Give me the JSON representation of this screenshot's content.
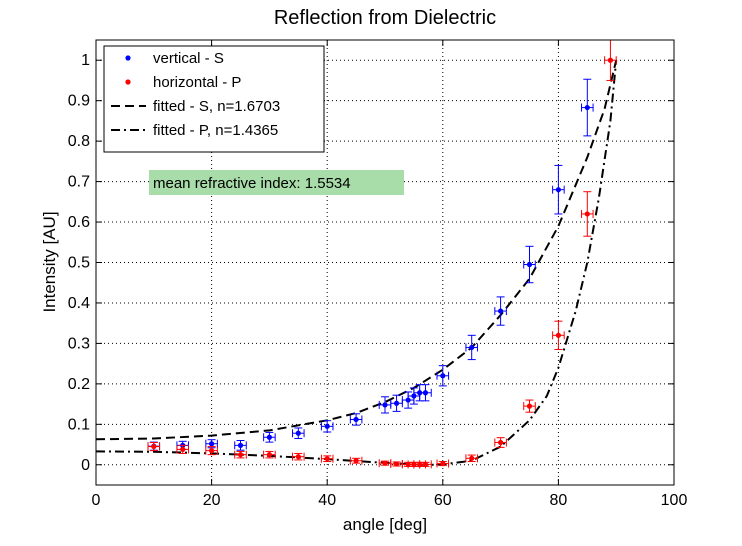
{
  "chart_data": {
    "type": "scatter",
    "title": "Reflection from Dielectric",
    "xlabel": "angle [deg]",
    "ylabel": "Intensity [AU]",
    "xlim": [
      0,
      100
    ],
    "ylim": [
      -0.05,
      1.05
    ],
    "x_ticks": [
      0,
      20,
      40,
      60,
      80,
      100
    ],
    "y_ticks": [
      0,
      0.1,
      0.2,
      0.3,
      0.4,
      0.5,
      0.6,
      0.7,
      0.8,
      0.9,
      1
    ],
    "grid": true,
    "legend_position": "top-left",
    "annotation": "mean refractive index: 1.5534",
    "annotation_color": "#a8dca8",
    "series": [
      {
        "name": "vertical - S",
        "kind": "points",
        "color": "#0000ff",
        "points": [
          {
            "x": 10,
            "y": 0.046,
            "err_y": 0.01,
            "err_x": 1
          },
          {
            "x": 15,
            "y": 0.048,
            "err_y": 0.01,
            "err_x": 1
          },
          {
            "x": 20,
            "y": 0.052,
            "err_y": 0.01,
            "err_x": 1
          },
          {
            "x": 25,
            "y": 0.048,
            "err_y": 0.012,
            "err_x": 1
          },
          {
            "x": 30,
            "y": 0.068,
            "err_y": 0.012,
            "err_x": 1
          },
          {
            "x": 35,
            "y": 0.078,
            "err_y": 0.013,
            "err_x": 1
          },
          {
            "x": 40,
            "y": 0.095,
            "err_y": 0.014,
            "err_x": 1
          },
          {
            "x": 45,
            "y": 0.112,
            "err_y": 0.014,
            "err_x": 1
          },
          {
            "x": 50,
            "y": 0.148,
            "err_y": 0.02,
            "err_x": 1
          },
          {
            "x": 52,
            "y": 0.152,
            "err_y": 0.02,
            "err_x": 1
          },
          {
            "x": 54,
            "y": 0.16,
            "err_y": 0.02,
            "err_x": 1
          },
          {
            "x": 55,
            "y": 0.17,
            "err_y": 0.02,
            "err_x": 1
          },
          {
            "x": 56,
            "y": 0.178,
            "err_y": 0.02,
            "err_x": 1
          },
          {
            "x": 57,
            "y": 0.178,
            "err_y": 0.02,
            "err_x": 1
          },
          {
            "x": 60,
            "y": 0.22,
            "err_y": 0.025,
            "err_x": 1
          },
          {
            "x": 65,
            "y": 0.29,
            "err_y": 0.03,
            "err_x": 1
          },
          {
            "x": 70,
            "y": 0.38,
            "err_y": 0.035,
            "err_x": 1
          },
          {
            "x": 75,
            "y": 0.495,
            "err_y": 0.045,
            "err_x": 1
          },
          {
            "x": 80,
            "y": 0.68,
            "err_y": 0.06,
            "err_x": 1
          },
          {
            "x": 85,
            "y": 0.883,
            "err_y": 0.07,
            "err_x": 1
          }
        ]
      },
      {
        "name": "horizontal - P",
        "kind": "points",
        "color": "#ff0000",
        "points": [
          {
            "x": 10,
            "y": 0.045,
            "err_y": 0.01,
            "err_x": 1
          },
          {
            "x": 15,
            "y": 0.038,
            "err_y": 0.01,
            "err_x": 1
          },
          {
            "x": 20,
            "y": 0.035,
            "err_y": 0.01,
            "err_x": 1
          },
          {
            "x": 25,
            "y": 0.025,
            "err_y": 0.008,
            "err_x": 1
          },
          {
            "x": 30,
            "y": 0.025,
            "err_y": 0.008,
            "err_x": 1
          },
          {
            "x": 35,
            "y": 0.02,
            "err_y": 0.008,
            "err_x": 1
          },
          {
            "x": 40,
            "y": 0.015,
            "err_y": 0.007,
            "err_x": 1
          },
          {
            "x": 45,
            "y": 0.01,
            "err_y": 0.006,
            "err_x": 1
          },
          {
            "x": 50,
            "y": 0.004,
            "err_y": 0.005,
            "err_x": 1
          },
          {
            "x": 52,
            "y": 0.002,
            "err_y": 0.005,
            "err_x": 1
          },
          {
            "x": 54,
            "y": 0.001,
            "err_y": 0.005,
            "err_x": 1
          },
          {
            "x": 55,
            "y": 0.001,
            "err_y": 0.005,
            "err_x": 1
          },
          {
            "x": 56,
            "y": 0.001,
            "err_y": 0.005,
            "err_x": 1
          },
          {
            "x": 57,
            "y": 0.001,
            "err_y": 0.005,
            "err_x": 1
          },
          {
            "x": 60,
            "y": 0.003,
            "err_y": 0.005,
            "err_x": 1
          },
          {
            "x": 65,
            "y": 0.016,
            "err_y": 0.008,
            "err_x": 1
          },
          {
            "x": 70,
            "y": 0.055,
            "err_y": 0.012,
            "err_x": 1
          },
          {
            "x": 75,
            "y": 0.145,
            "err_y": 0.015,
            "err_x": 1
          },
          {
            "x": 80,
            "y": 0.32,
            "err_y": 0.035,
            "err_x": 1
          },
          {
            "x": 85,
            "y": 0.62,
            "err_y": 0.055,
            "err_x": 1
          },
          {
            "x": 89,
            "y": 1.0,
            "err_y": 0.05,
            "err_x": 1
          }
        ]
      },
      {
        "name": "fitted - S, n=1.6703",
        "kind": "curve",
        "color": "#000000",
        "dash": "dashed",
        "points": [
          {
            "x": 0,
            "y": 0.063
          },
          {
            "x": 10,
            "y": 0.065
          },
          {
            "x": 20,
            "y": 0.072
          },
          {
            "x": 30,
            "y": 0.085
          },
          {
            "x": 40,
            "y": 0.11
          },
          {
            "x": 45,
            "y": 0.128
          },
          {
            "x": 50,
            "y": 0.155
          },
          {
            "x": 55,
            "y": 0.19
          },
          {
            "x": 60,
            "y": 0.235
          },
          {
            "x": 65,
            "y": 0.29
          },
          {
            "x": 70,
            "y": 0.37
          },
          {
            "x": 75,
            "y": 0.46
          },
          {
            "x": 80,
            "y": 0.59
          },
          {
            "x": 85,
            "y": 0.76
          },
          {
            "x": 88,
            "y": 0.88
          },
          {
            "x": 90,
            "y": 1.0
          }
        ]
      },
      {
        "name": "fitted - P, n=1.4365",
        "kind": "curve",
        "color": "#000000",
        "dash": "dashdot",
        "points": [
          {
            "x": 0,
            "y": 0.033
          },
          {
            "x": 10,
            "y": 0.032
          },
          {
            "x": 20,
            "y": 0.028
          },
          {
            "x": 30,
            "y": 0.022
          },
          {
            "x": 40,
            "y": 0.014
          },
          {
            "x": 45,
            "y": 0.009
          },
          {
            "x": 50,
            "y": 0.005
          },
          {
            "x": 55,
            "y": 0.001
          },
          {
            "x": 58,
            "y": 0.0
          },
          {
            "x": 60,
            "y": 0.001
          },
          {
            "x": 65,
            "y": 0.01
          },
          {
            "x": 70,
            "y": 0.045
          },
          {
            "x": 75,
            "y": 0.11
          },
          {
            "x": 78,
            "y": 0.17
          },
          {
            "x": 80,
            "y": 0.24
          },
          {
            "x": 83,
            "y": 0.38
          },
          {
            "x": 85,
            "y": 0.5
          },
          {
            "x": 87,
            "y": 0.66
          },
          {
            "x": 89,
            "y": 0.85
          },
          {
            "x": 90,
            "y": 1.0
          }
        ]
      }
    ]
  }
}
